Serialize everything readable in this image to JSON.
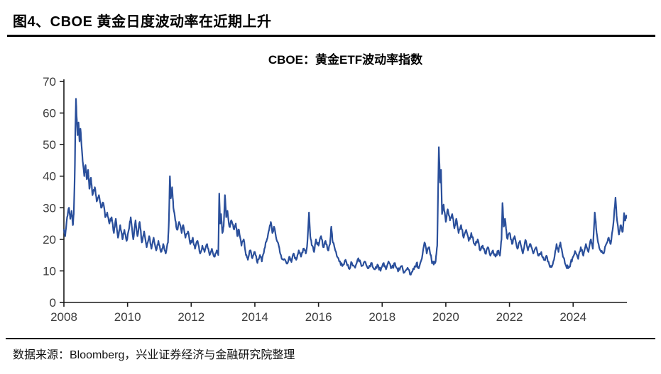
{
  "page": {
    "title": "图4、CBOE 黄金日度波动率在近期上升",
    "source_note": "数据来源：Bloomberg，兴业证券经济与金融研究院整理"
  },
  "chart_data": {
    "type": "line",
    "title": "CBOE：黄金ETF波动率指数",
    "xlabel": "",
    "ylabel": "",
    "x_range": [
      2008,
      2025.69
    ],
    "ylim": [
      0,
      70
    ],
    "x_ticks": [
      2008,
      2010,
      2012,
      2014,
      2016,
      2018,
      2020,
      2022,
      2024
    ],
    "y_ticks": [
      0,
      10,
      20,
      30,
      40,
      50,
      60,
      70
    ],
    "grid": false,
    "legend": "none",
    "axis_color": "#1a1a1a",
    "tick_label_color": "#3d3d3d",
    "series": [
      {
        "name": "CBOE黄金ETF波动率指数",
        "color": "#2a4f9b",
        "points": [
          [
            2008.0,
            23
          ],
          [
            2008.04,
            21
          ],
          [
            2008.1,
            27
          ],
          [
            2008.16,
            30
          ],
          [
            2008.2,
            26.5
          ],
          [
            2008.24,
            29
          ],
          [
            2008.28,
            24.5
          ],
          [
            2008.31,
            28
          ],
          [
            2008.34,
            40
          ],
          [
            2008.36,
            55
          ],
          [
            2008.38,
            64.5
          ],
          [
            2008.4,
            59
          ],
          [
            2008.43,
            53
          ],
          [
            2008.46,
            57
          ],
          [
            2008.49,
            51
          ],
          [
            2008.52,
            55
          ],
          [
            2008.56,
            49
          ],
          [
            2008.6,
            44
          ],
          [
            2008.64,
            40
          ],
          [
            2008.68,
            43.5
          ],
          [
            2008.72,
            39
          ],
          [
            2008.76,
            42
          ],
          [
            2008.8,
            36
          ],
          [
            2008.85,
            39.5
          ],
          [
            2008.9,
            34
          ],
          [
            2008.97,
            36.5
          ],
          [
            2009.03,
            32
          ],
          [
            2009.1,
            34
          ],
          [
            2009.17,
            30
          ],
          [
            2009.24,
            31.5
          ],
          [
            2009.3,
            27
          ],
          [
            2009.36,
            28.5
          ],
          [
            2009.43,
            25
          ],
          [
            2009.5,
            27
          ],
          [
            2009.57,
            22
          ],
          [
            2009.63,
            26.5
          ],
          [
            2009.7,
            20.5
          ],
          [
            2009.77,
            24.5
          ],
          [
            2009.84,
            20
          ],
          [
            2009.9,
            23
          ],
          [
            2009.97,
            19.5
          ],
          [
            2010.05,
            23.5
          ],
          [
            2010.1,
            27
          ],
          [
            2010.18,
            20
          ],
          [
            2010.25,
            26
          ],
          [
            2010.31,
            21
          ],
          [
            2010.38,
            25.5
          ],
          [
            2010.45,
            19
          ],
          [
            2010.52,
            22.5
          ],
          [
            2010.6,
            17.5
          ],
          [
            2010.68,
            21
          ],
          [
            2010.75,
            17
          ],
          [
            2010.82,
            20.5
          ],
          [
            2010.9,
            16.5
          ],
          [
            2010.97,
            19.5
          ],
          [
            2011.05,
            16
          ],
          [
            2011.12,
            18.5
          ],
          [
            2011.2,
            15.5
          ],
          [
            2011.27,
            19
          ],
          [
            2011.3,
            26
          ],
          [
            2011.33,
            40
          ],
          [
            2011.36,
            33
          ],
          [
            2011.4,
            36.5
          ],
          [
            2011.44,
            30
          ],
          [
            2011.5,
            26
          ],
          [
            2011.56,
            23
          ],
          [
            2011.62,
            25.5
          ],
          [
            2011.7,
            22
          ],
          [
            2011.75,
            24.5
          ],
          [
            2011.82,
            20.5
          ],
          [
            2011.9,
            22.5
          ],
          [
            2011.97,
            18.5
          ],
          [
            2012.05,
            20.5
          ],
          [
            2012.12,
            17
          ],
          [
            2012.2,
            19.5
          ],
          [
            2012.28,
            15.5
          ],
          [
            2012.35,
            18
          ],
          [
            2012.42,
            16
          ],
          [
            2012.5,
            18.5
          ],
          [
            2012.58,
            15
          ],
          [
            2012.65,
            17
          ],
          [
            2012.72,
            14.5
          ],
          [
            2012.8,
            16.5
          ],
          [
            2012.85,
            15
          ],
          [
            2012.88,
            34.5
          ],
          [
            2012.91,
            25
          ],
          [
            2012.94,
            28
          ],
          [
            2012.98,
            22
          ],
          [
            2013.02,
            24
          ],
          [
            2013.06,
            34
          ],
          [
            2013.1,
            27
          ],
          [
            2013.14,
            29
          ],
          [
            2013.2,
            24
          ],
          [
            2013.26,
            26
          ],
          [
            2013.33,
            23.5
          ],
          [
            2013.4,
            25
          ],
          [
            2013.45,
            21
          ],
          [
            2013.5,
            23
          ],
          [
            2013.58,
            18
          ],
          [
            2013.65,
            20
          ],
          [
            2013.72,
            15
          ],
          [
            2013.78,
            13.5
          ],
          [
            2013.85,
            16.5
          ],
          [
            2013.92,
            14
          ],
          [
            2014.0,
            16
          ],
          [
            2014.08,
            12.5
          ],
          [
            2014.16,
            15
          ],
          [
            2014.22,
            13
          ],
          [
            2014.3,
            17
          ],
          [
            2014.38,
            20
          ],
          [
            2014.45,
            23
          ],
          [
            2014.5,
            25.5
          ],
          [
            2014.55,
            22
          ],
          [
            2014.6,
            24
          ],
          [
            2014.68,
            20
          ],
          [
            2014.75,
            18
          ],
          [
            2014.82,
            15
          ],
          [
            2014.9,
            13.5
          ],
          [
            2015.0,
            12.3
          ],
          [
            2015.08,
            14.5
          ],
          [
            2015.15,
            12.8
          ],
          [
            2015.22,
            15.5
          ],
          [
            2015.3,
            13.5
          ],
          [
            2015.38,
            16.5
          ],
          [
            2015.45,
            14.5
          ],
          [
            2015.52,
            17
          ],
          [
            2015.6,
            15.5
          ],
          [
            2015.65,
            19
          ],
          [
            2015.7,
            28.5
          ],
          [
            2015.74,
            21
          ],
          [
            2015.8,
            18
          ],
          [
            2015.86,
            16
          ],
          [
            2015.92,
            20
          ],
          [
            2016.0,
            18
          ],
          [
            2016.08,
            21
          ],
          [
            2016.15,
            17.5
          ],
          [
            2016.22,
            19.5
          ],
          [
            2016.3,
            16.5
          ],
          [
            2016.36,
            18.5
          ],
          [
            2016.4,
            24
          ],
          [
            2016.45,
            19
          ],
          [
            2016.55,
            16
          ],
          [
            2016.65,
            13
          ],
          [
            2016.75,
            11.5
          ],
          [
            2016.85,
            13.5
          ],
          [
            2016.95,
            10.8
          ],
          [
            2017.05,
            12.5
          ],
          [
            2017.15,
            11
          ],
          [
            2017.25,
            14
          ],
          [
            2017.35,
            11.5
          ],
          [
            2017.45,
            13
          ],
          [
            2017.55,
            10.8
          ],
          [
            2017.65,
            12.5
          ],
          [
            2017.75,
            10.5
          ],
          [
            2017.85,
            12
          ],
          [
            2017.95,
            10
          ],
          [
            2018.05,
            12.5
          ],
          [
            2018.12,
            10.5
          ],
          [
            2018.2,
            13
          ],
          [
            2018.3,
            11
          ],
          [
            2018.4,
            12.5
          ],
          [
            2018.5,
            9.8
          ],
          [
            2018.6,
            11.5
          ],
          [
            2018.7,
            9.5
          ],
          [
            2018.8,
            11
          ],
          [
            2018.9,
            8.8
          ],
          [
            2019.0,
            10.5
          ],
          [
            2019.08,
            12.5
          ],
          [
            2019.15,
            10.8
          ],
          [
            2019.25,
            14
          ],
          [
            2019.33,
            19
          ],
          [
            2019.4,
            15.5
          ],
          [
            2019.48,
            17.5
          ],
          [
            2019.55,
            13.5
          ],
          [
            2019.62,
            12
          ],
          [
            2019.68,
            13
          ],
          [
            2019.73,
            18
          ],
          [
            2019.78,
            49.2
          ],
          [
            2019.82,
            38
          ],
          [
            2019.85,
            42
          ],
          [
            2019.88,
            28
          ],
          [
            2019.93,
            31
          ],
          [
            2020.0,
            25.5
          ],
          [
            2020.06,
            29.5
          ],
          [
            2020.13,
            26
          ],
          [
            2020.2,
            28
          ],
          [
            2020.27,
            23.5
          ],
          [
            2020.33,
            26.5
          ],
          [
            2020.4,
            22
          ],
          [
            2020.48,
            24.5
          ],
          [
            2020.56,
            20.5
          ],
          [
            2020.64,
            23
          ],
          [
            2020.72,
            19.5
          ],
          [
            2020.8,
            22
          ],
          [
            2020.9,
            18.5
          ],
          [
            2021.0,
            20
          ],
          [
            2021.08,
            16.5
          ],
          [
            2021.16,
            18
          ],
          [
            2021.24,
            15.5
          ],
          [
            2021.32,
            17.5
          ],
          [
            2021.4,
            14.8
          ],
          [
            2021.48,
            16.5
          ],
          [
            2021.56,
            14.5
          ],
          [
            2021.64,
            16
          ],
          [
            2021.7,
            14.8
          ],
          [
            2021.75,
            20
          ],
          [
            2021.78,
            31.5
          ],
          [
            2021.82,
            24
          ],
          [
            2021.86,
            26.5
          ],
          [
            2021.92,
            20.5
          ],
          [
            2022.0,
            22
          ],
          [
            2022.08,
            18.5
          ],
          [
            2022.16,
            21
          ],
          [
            2022.25,
            17
          ],
          [
            2022.33,
            19.5
          ],
          [
            2022.42,
            15.5
          ],
          [
            2022.5,
            19.8
          ],
          [
            2022.58,
            16.5
          ],
          [
            2022.66,
            18.5
          ],
          [
            2022.75,
            15.5
          ],
          [
            2022.84,
            17.5
          ],
          [
            2022.92,
            14.8
          ],
          [
            2023.0,
            16
          ],
          [
            2023.08,
            13.5
          ],
          [
            2023.16,
            14.8
          ],
          [
            2023.25,
            12
          ],
          [
            2023.32,
            11.2
          ],
          [
            2023.4,
            13.5
          ],
          [
            2023.48,
            18.5
          ],
          [
            2023.54,
            16
          ],
          [
            2023.6,
            19
          ],
          [
            2023.68,
            14.5
          ],
          [
            2023.76,
            12
          ],
          [
            2023.84,
            10.8
          ],
          [
            2023.92,
            12.5
          ],
          [
            2024.0,
            14.5
          ],
          [
            2024.08,
            15.8
          ],
          [
            2024.16,
            13.8
          ],
          [
            2024.24,
            17.5
          ],
          [
            2024.32,
            14.8
          ],
          [
            2024.4,
            18.5
          ],
          [
            2024.48,
            16
          ],
          [
            2024.56,
            20
          ],
          [
            2024.62,
            17
          ],
          [
            2024.68,
            28.5
          ],
          [
            2024.74,
            22
          ],
          [
            2024.8,
            18.5
          ],
          [
            2024.88,
            16
          ],
          [
            2024.96,
            15.5
          ],
          [
            2025.04,
            18.5
          ],
          [
            2025.12,
            20.5
          ],
          [
            2025.18,
            18.5
          ],
          [
            2025.26,
            24.5
          ],
          [
            2025.33,
            33.2
          ],
          [
            2025.38,
            26
          ],
          [
            2025.44,
            21.5
          ],
          [
            2025.5,
            24.5
          ],
          [
            2025.56,
            22.5
          ],
          [
            2025.6,
            28.3
          ],
          [
            2025.64,
            26
          ],
          [
            2025.67,
            27.5
          ]
        ]
      }
    ],
    "render": {
      "samples_per_segment": 3,
      "jitter_amplitude": 0.85,
      "line_width": 2.2
    }
  }
}
